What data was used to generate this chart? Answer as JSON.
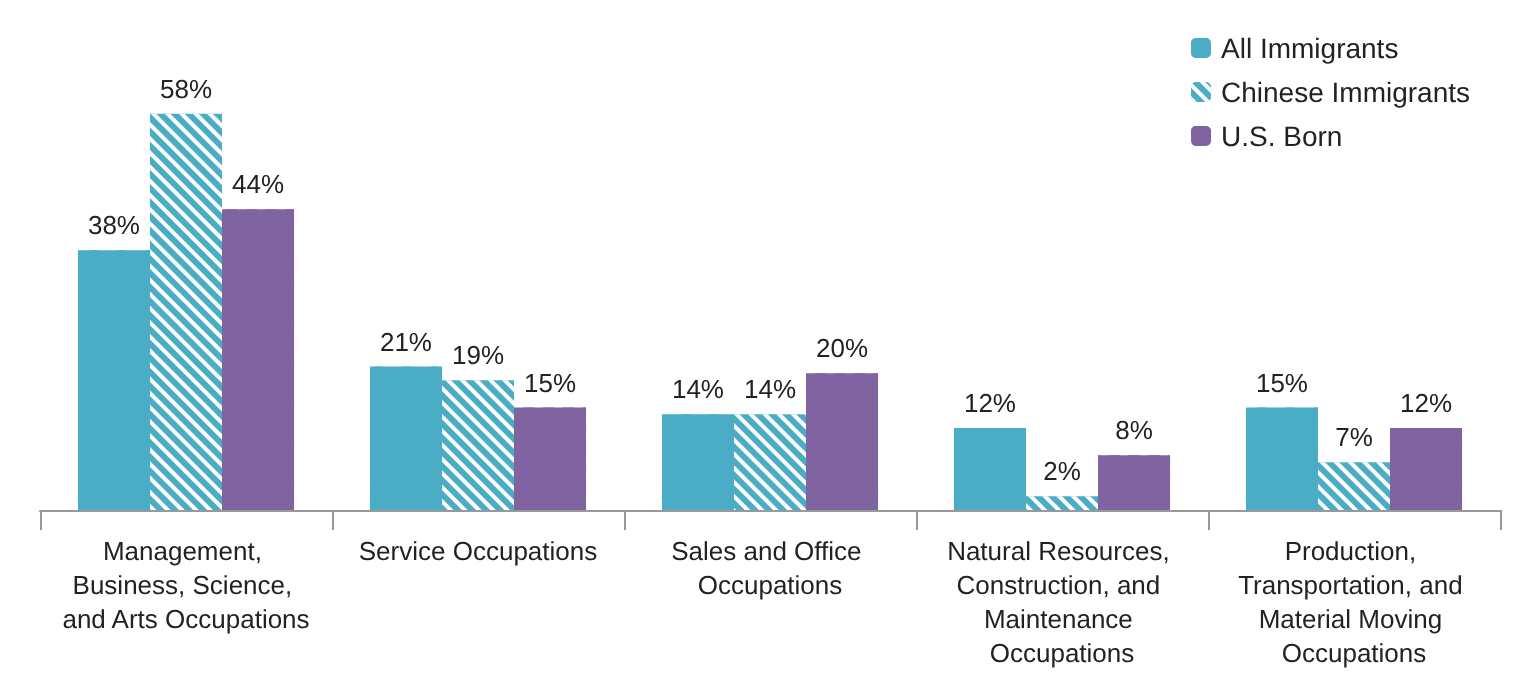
{
  "chart_data": {
    "type": "bar",
    "categories": [
      "Management, Business, Science, and Arts Occupations",
      "Service Occupations",
      "Sales and Office Occupations",
      "Natural Resources, Construction, and Maintenance Occupations",
      "Production, Transportation, and Material Moving Occupations"
    ],
    "series": [
      {
        "name": "All Immigrants",
        "color": "#4bacc6",
        "values": [
          38,
          21,
          14,
          12,
          15
        ],
        "value_labels": [
          "38%",
          "21%",
          "14%",
          "12%",
          "15%"
        ]
      },
      {
        "name": "Chinese Immigrants",
        "color": "#4bacc6",
        "values": [
          58,
          19,
          14,
          2,
          7
        ],
        "value_labels": [
          "58%",
          "19%",
          "14%",
          "2%",
          "7%"
        ]
      },
      {
        "name": "U.S. Born",
        "color": "#8064a2",
        "values": [
          44,
          15,
          20,
          8,
          12
        ],
        "value_labels": [
          "44%",
          "15%",
          "20%",
          "8%",
          "12%"
        ]
      }
    ],
    "legend": "top right"
  }
}
